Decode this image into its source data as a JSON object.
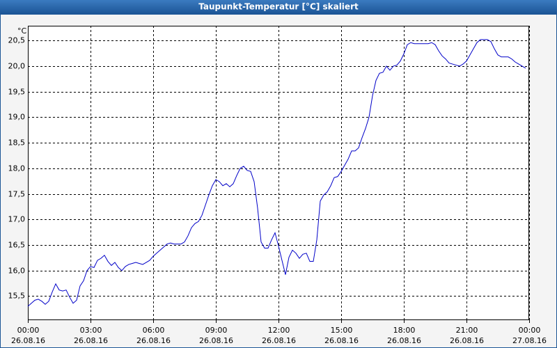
{
  "chart_data": {
    "type": "line",
    "title": "Taupunkt-Temperatur [°C] skaliert",
    "y_label": "°C",
    "x": [
      0,
      10,
      20,
      30,
      40,
      50,
      60,
      70,
      80,
      90,
      100,
      110,
      120,
      130,
      140,
      150,
      160,
      170,
      180,
      190,
      200,
      210,
      220,
      230,
      240,
      250,
      260,
      270,
      280,
      290,
      300,
      310,
      320,
      330,
      340,
      350,
      360,
      370,
      380,
      390,
      400,
      410,
      420,
      430,
      440,
      450,
      460,
      470,
      480,
      490,
      500,
      510,
      520,
      530,
      540,
      550,
      560,
      570,
      580,
      590,
      600,
      610,
      620,
      630,
      640,
      650,
      660,
      670,
      680,
      690,
      700,
      710,
      720,
      730,
      740,
      750,
      760,
      770,
      780,
      790,
      800,
      810,
      820,
      830,
      840,
      850,
      860,
      870,
      880,
      890,
      900,
      910,
      920,
      930,
      940,
      950,
      960,
      970,
      980,
      990,
      1000,
      1010,
      1020,
      1030,
      1040,
      1050,
      1060,
      1070,
      1080,
      1090,
      1100,
      1110,
      1120,
      1130,
      1140,
      1150,
      1160,
      1170,
      1180,
      1190,
      1200,
      1210,
      1220,
      1230,
      1240,
      1250,
      1260,
      1270,
      1280,
      1290,
      1300,
      1310,
      1320,
      1330,
      1340,
      1350,
      1360,
      1370,
      1380,
      1390,
      1400,
      1410,
      1420,
      1430
    ],
    "series": [
      {
        "name": "Taupunkt-Temperatur",
        "color": "#0000c8",
        "values": [
          15.3,
          15.36,
          15.42,
          15.44,
          15.4,
          15.34,
          15.4,
          15.58,
          15.74,
          15.62,
          15.6,
          15.62,
          15.48,
          15.36,
          15.42,
          15.7,
          15.8,
          16.0,
          16.08,
          16.06,
          16.2,
          16.24,
          16.3,
          16.18,
          16.1,
          16.16,
          16.06,
          16.0,
          16.08,
          16.12,
          16.14,
          16.16,
          16.14,
          16.12,
          16.16,
          16.2,
          16.28,
          16.34,
          16.4,
          16.46,
          16.52,
          16.54,
          16.52,
          16.52,
          16.52,
          16.56,
          16.68,
          16.84,
          16.92,
          16.96,
          17.08,
          17.28,
          17.48,
          17.66,
          17.78,
          17.74,
          17.66,
          17.7,
          17.64,
          17.7,
          17.86,
          18.0,
          18.04,
          17.96,
          17.94,
          17.74,
          17.22,
          16.56,
          16.44,
          16.44,
          16.6,
          16.74,
          16.48,
          16.2,
          15.92,
          16.26,
          16.4,
          16.34,
          16.24,
          16.32,
          16.34,
          16.18,
          16.18,
          16.6,
          17.36,
          17.48,
          17.54,
          17.66,
          17.82,
          17.84,
          17.94,
          18.06,
          18.18,
          18.34,
          18.34,
          18.4,
          18.6,
          18.78,
          19.0,
          19.42,
          19.72,
          19.86,
          19.88,
          20.0,
          19.92,
          20.0,
          20.02,
          20.1,
          20.24,
          20.42,
          20.46,
          20.44,
          20.44,
          20.44,
          20.44,
          20.44,
          20.46,
          20.42,
          20.3,
          20.2,
          20.14,
          20.06,
          20.04,
          20.02,
          20.0,
          20.04,
          20.1,
          20.22,
          20.34,
          20.46,
          20.52,
          20.52,
          20.52,
          20.48,
          20.34,
          20.22,
          20.18,
          20.18,
          20.18,
          20.14,
          20.08,
          20.04,
          20.0,
          19.96
        ]
      }
    ],
    "xlim": [
      0,
      1440
    ],
    "xticks": [
      {
        "value": 0,
        "label": "00:00"
      },
      {
        "value": 180,
        "label": "03:00"
      },
      {
        "value": 360,
        "label": "06:00"
      },
      {
        "value": 540,
        "label": "09:00"
      },
      {
        "value": 720,
        "label": "12:00"
      },
      {
        "value": 900,
        "label": "15:00"
      },
      {
        "value": 1080,
        "label": "18:00"
      },
      {
        "value": 1260,
        "label": "21:00"
      },
      {
        "value": 1440,
        "label": "00:00"
      }
    ],
    "xtick_dates": [
      "26.08.16",
      "26.08.16",
      "26.08.16",
      "26.08.16",
      "26.08.16",
      "26.08.16",
      "26.08.16",
      "26.08.16",
      "27.08.16"
    ],
    "ylim": [
      15.03,
      20.79
    ],
    "yticks": [
      {
        "value": 15.5,
        "label": "15,5"
      },
      {
        "value": 16,
        "label": "16,0"
      },
      {
        "value": 16.5,
        "label": "16,5"
      },
      {
        "value": 17,
        "label": "17,0"
      },
      {
        "value": 17.5,
        "label": "17,5"
      },
      {
        "value": 18,
        "label": "18,0"
      },
      {
        "value": 18.5,
        "label": "18,5"
      },
      {
        "value": 19,
        "label": "19,0"
      },
      {
        "value": 19.5,
        "label": "19,5"
      },
      {
        "value": 20,
        "label": "20,0"
      },
      {
        "value": 20.5,
        "label": "20,5"
      }
    ],
    "grid": true
  }
}
